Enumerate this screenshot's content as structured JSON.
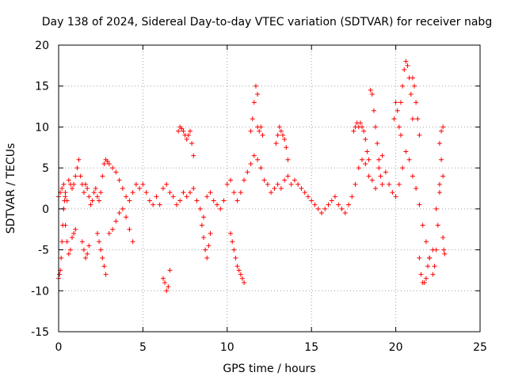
{
  "chart_data": {
    "type": "scatter",
    "title": "Day 138 of 2024, Sidereal Day-to-day VTEC variation (SDTVAR) for receiver nabg",
    "xlabel": "GPS time / hours",
    "ylabel": "SDTVAR / TECUs",
    "xlim": [
      0,
      25
    ],
    "ylim": [
      -15,
      20
    ],
    "xticks": [
      0,
      5,
      10,
      15,
      20,
      25
    ],
    "yticks": [
      -15,
      -10,
      -5,
      0,
      5,
      10,
      15,
      20
    ],
    "grid": true,
    "marker": "+",
    "color": "#ff0000",
    "series": [
      {
        "name": "SDTVAR",
        "segments": [
          {
            "x": [
              0.0,
              0.1,
              0.2,
              0.3,
              0.4,
              0.5,
              0.6,
              0.7,
              0.8,
              0.9,
              1.0,
              1.1,
              1.2,
              1.3,
              1.4,
              1.5,
              1.6,
              1.7,
              1.8,
              1.9,
              2.0,
              2.1,
              2.2,
              2.3,
              2.4,
              2.5,
              2.6,
              2.7,
              2.8,
              2.9,
              3.0,
              3.2,
              3.4,
              3.6,
              3.8,
              4.0,
              4.2,
              4.4,
              4.6,
              4.8,
              5.0,
              5.2,
              5.4,
              5.6,
              5.8,
              6.0,
              6.2,
              6.4,
              6.6,
              6.8,
              7.0,
              7.2,
              7.4,
              7.6,
              7.8,
              8.0,
              8.2,
              8.4,
              8.6,
              8.8,
              9.0,
              9.2,
              9.4,
              9.6,
              9.8,
              10.0,
              10.2,
              10.4,
              10.6,
              10.8,
              11.0,
              11.2,
              11.4,
              11.6,
              11.8,
              12.0,
              12.2,
              12.4,
              12.6,
              12.8,
              13.0,
              13.2,
              13.4,
              13.6,
              13.8,
              14.0,
              14.2,
              14.4,
              14.6,
              14.8,
              15.0,
              15.2,
              15.4,
              15.6,
              15.8,
              16.0,
              16.2,
              16.4,
              16.6,
              16.8,
              17.0,
              17.2,
              17.4,
              17.6,
              17.8,
              18.0,
              18.2,
              18.4,
              18.6,
              18.8,
              19.0,
              19.2,
              19.4,
              19.6,
              19.8,
              20.0,
              20.2,
              20.4,
              20.6,
              20.8,
              21.0,
              21.2,
              21.4,
              21.6,
              21.8,
              22.0,
              22.2,
              22.4,
              22.6,
              22.8
            ],
            "y": [
              1.5,
              2.0,
              2.5,
              3.0,
              2.0,
              1.0,
              3.5,
              3.0,
              2.5,
              3.0,
              4.0,
              5.0,
              6.0,
              4.0,
              3.0,
              2.0,
              3.0,
              2.5,
              1.5,
              0.5,
              1.0,
              2.0,
              2.5,
              1.5,
              1.0,
              2.0,
              4.0,
              5.5,
              6.0,
              5.8,
              5.5,
              5.0,
              4.5,
              3.5,
              2.5,
              1.5,
              1.0,
              2.0,
              3.0,
              2.5,
              3.0,
              2.0,
              1.0,
              0.5,
              1.5,
              0.5,
              2.5,
              3.0,
              2.0,
              1.5,
              0.5,
              1.0,
              2.0,
              1.5,
              2.0,
              2.5,
              1.0,
              0.0,
              -1.0,
              1.5,
              2.0,
              1.0,
              0.5,
              0.0,
              1.0,
              3.0,
              3.5,
              2.0,
              1.0,
              2.0,
              3.5,
              4.5,
              5.5,
              6.5,
              6.0,
              5.0,
              3.5,
              3.0,
              2.0,
              2.5,
              3.0,
              2.5,
              3.5,
              4.0,
              3.0,
              3.5,
              3.0,
              2.5,
              2.0,
              1.5,
              1.0,
              0.5,
              0.0,
              -0.5,
              0.0,
              0.5,
              1.0,
              1.5,
              0.5,
              0.0,
              -0.5,
              0.5,
              1.5,
              3.0,
              5.0,
              6.0,
              5.5,
              4.0,
              3.5,
              2.5,
              5.0,
              6.5,
              4.5,
              3.0,
              2.0,
              1.5,
              3.0,
              5.0,
              7.0,
              6.0,
              4.0,
              2.5,
              0.5,
              -2.0,
              -4.0,
              -6.0,
              -5.0,
              0.0,
              3.0,
              4.0
            ]
          },
          {
            "x": [
              0.0,
              0.05,
              0.1,
              0.15,
              0.2,
              0.25,
              0.3,
              0.35,
              0.4
            ],
            "y": [
              -8.5,
              -8.0,
              -7.5,
              -6.0,
              -4.0,
              -2.0,
              0.0,
              1.0,
              1.5
            ]
          },
          {
            "x": [
              0.3,
              0.4,
              0.5,
              0.6,
              0.7,
              0.8,
              0.9,
              1.0
            ],
            "y": [
              0.0,
              -2.0,
              -4.0,
              -5.5,
              -5.0,
              -3.5,
              -3.0,
              -2.5
            ]
          },
          {
            "x": [
              1.4,
              1.5,
              1.6,
              1.7,
              1.8
            ],
            "y": [
              -4.0,
              -5.0,
              -6.0,
              -5.5,
              -4.5
            ]
          },
          {
            "x": [
              2.3,
              2.4,
              2.5,
              2.6,
              2.7,
              2.8
            ],
            "y": [
              -3.0,
              -4.0,
              -5.0,
              -6.0,
              -7.0,
              -8.0
            ]
          },
          {
            "x": [
              3.0,
              3.2,
              3.4,
              3.6,
              3.8,
              4.0,
              4.2,
              4.4
            ],
            "y": [
              -3.0,
              -2.5,
              -1.5,
              -0.5,
              0.0,
              -1.0,
              -2.5,
              -4.0
            ]
          },
          {
            "x": [
              6.2,
              6.3,
              6.4,
              6.5,
              6.6
            ],
            "y": [
              -8.5,
              -9.0,
              -10.0,
              -9.5,
              -7.5
            ]
          },
          {
            "x": [
              7.1,
              7.2,
              7.3,
              7.4,
              7.5,
              7.6,
              7.7,
              7.8,
              7.9,
              8.0
            ],
            "y": [
              9.5,
              10.0,
              9.8,
              9.5,
              9.0,
              8.5,
              9.0,
              9.5,
              8.0,
              6.5
            ]
          },
          {
            "x": [
              8.5,
              8.6,
              8.7,
              8.8,
              8.9,
              9.0
            ],
            "y": [
              -2.0,
              -3.5,
              -5.0,
              -6.0,
              -4.5,
              -3.0
            ]
          },
          {
            "x": [
              10.2,
              10.3,
              10.4,
              10.5,
              10.6,
              10.7,
              10.8,
              10.9,
              11.0
            ],
            "y": [
              -3.0,
              -4.0,
              -5.0,
              -6.0,
              -7.0,
              -7.5,
              -8.0,
              -8.5,
              -9.0
            ]
          },
          {
            "x": [
              11.4,
              11.5,
              11.6,
              11.7,
              11.8
            ],
            "y": [
              9.5,
              11.0,
              13.0,
              15.0,
              14.0
            ]
          },
          {
            "x": [
              11.8,
              11.9,
              12.0,
              12.1
            ],
            "y": [
              10.0,
              9.5,
              10.0,
              9.0
            ]
          },
          {
            "x": [
              12.9,
              13.0,
              13.1,
              13.2,
              13.3,
              13.4,
              13.5,
              13.6
            ],
            "y": [
              8.0,
              9.0,
              10.0,
              9.5,
              9.0,
              8.5,
              7.5,
              6.0
            ]
          },
          {
            "x": [
              17.5,
              17.6,
              17.7,
              17.8,
              17.9,
              18.0,
              18.1,
              18.2,
              18.3,
              18.4
            ],
            "y": [
              9.5,
              10.0,
              10.5,
              10.0,
              10.5,
              10.0,
              9.5,
              8.5,
              7.0,
              6.0
            ]
          },
          {
            "x": [
              18.5,
              18.6,
              18.7,
              18.8,
              18.9,
              19.0,
              19.1,
              19.2
            ],
            "y": [
              14.5,
              14.0,
              12.0,
              10.0,
              8.0,
              6.0,
              4.0,
              3.0
            ]
          },
          {
            "x": [
              19.9,
              20.0,
              20.1,
              20.2,
              20.3
            ],
            "y": [
              11.0,
              13.0,
              12.0,
              10.0,
              9.0
            ]
          },
          {
            "x": [
              20.3,
              20.4,
              20.5,
              20.6,
              20.7,
              20.8,
              20.9,
              21.0
            ],
            "y": [
              13.0,
              15.0,
              17.0,
              18.0,
              17.5,
              16.0,
              14.0,
              11.0
            ]
          },
          {
            "x": [
              21.0,
              21.1,
              21.2,
              21.3,
              21.4
            ],
            "y": [
              16.0,
              15.0,
              13.0,
              11.0,
              9.0
            ]
          },
          {
            "x": [
              21.4,
              21.5,
              21.6,
              21.7,
              21.8,
              21.9,
              22.0
            ],
            "y": [
              -6.0,
              -8.0,
              -9.0,
              -9.0,
              -8.5,
              -7.0,
              -6.0
            ]
          },
          {
            "x": [
              22.2,
              22.3,
              22.4,
              22.5,
              22.6,
              22.7
            ],
            "y": [
              -8.0,
              -7.0,
              -5.0,
              -2.0,
              2.0,
              6.0
            ]
          },
          {
            "x": [
              22.6,
              22.7,
              22.8
            ],
            "y": [
              8.0,
              9.5,
              10.0
            ]
          },
          {
            "x": [
              22.8,
              22.85,
              22.9
            ],
            "y": [
              -3.5,
              -5.0,
              -5.5
            ]
          }
        ]
      }
    ]
  }
}
